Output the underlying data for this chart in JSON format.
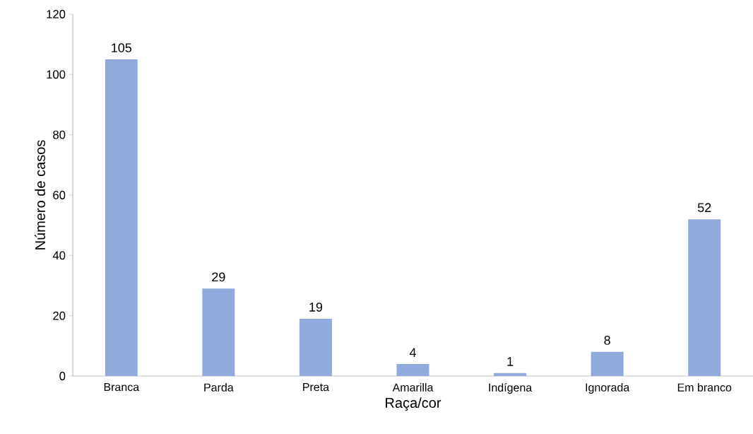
{
  "chart_data": {
    "type": "bar",
    "xlabel": "Raça/cor",
    "ylabel": "Número de casos",
    "categories": [
      "Branca",
      "Parda",
      "Preta",
      "Amarilla",
      "Indígena",
      "Ignorada",
      "Em branco"
    ],
    "values": [
      105,
      29,
      19,
      4,
      1,
      8,
      52
    ],
    "color": "#8faadc",
    "ylim": [
      0,
      120
    ],
    "yticks": [
      0,
      20,
      40,
      60,
      80,
      100,
      120
    ],
    "data_labels": true,
    "grid": false
  }
}
